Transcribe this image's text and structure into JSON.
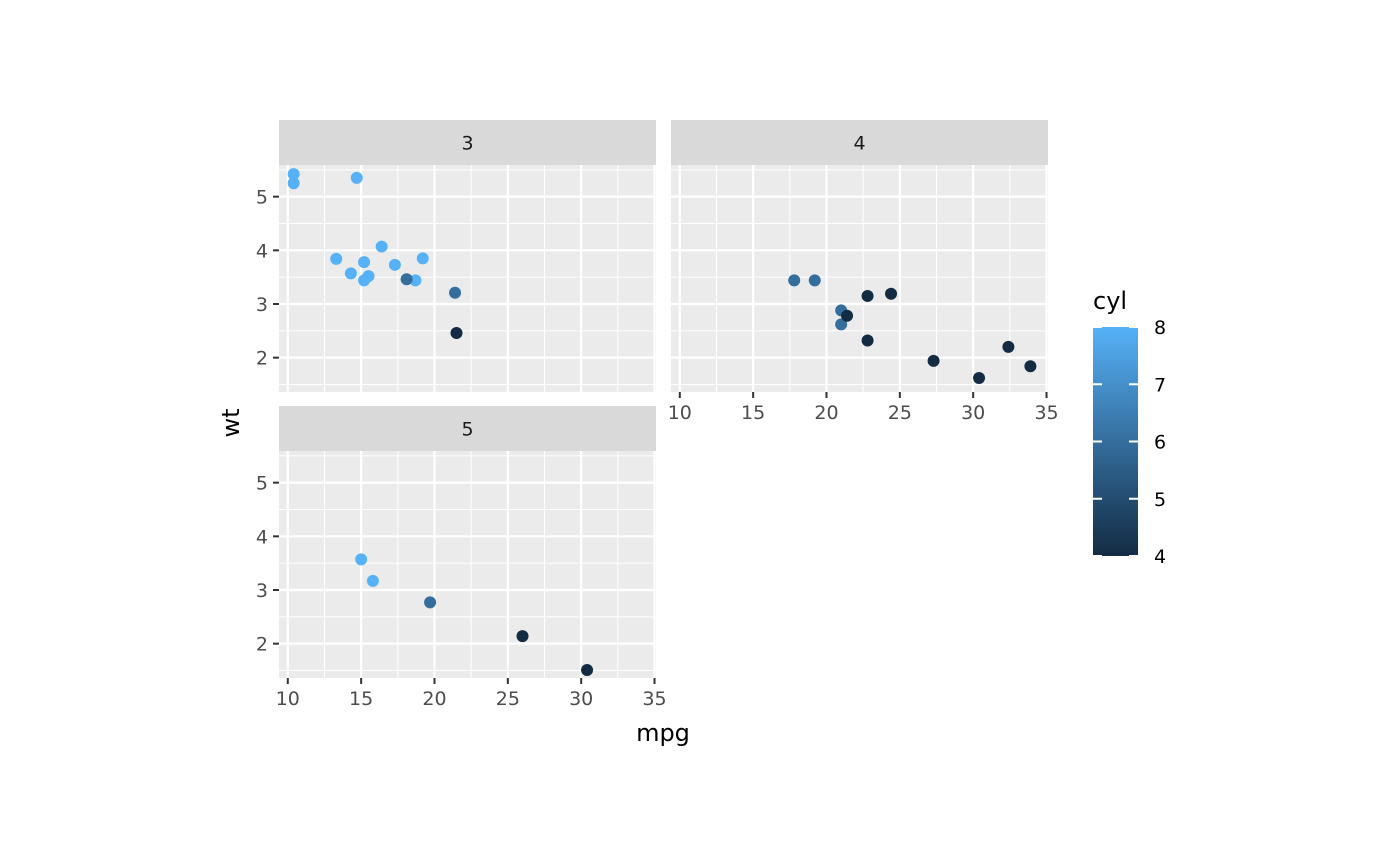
{
  "chart_data": {
    "type": "scatter",
    "xlabel": "mpg",
    "ylabel": "wt",
    "facet_variable": "gear",
    "xlim": [
      9.4,
      35.1
    ],
    "ylim": [
      1.36,
      5.59
    ],
    "x_ticks": [
      10,
      15,
      20,
      25,
      30,
      35
    ],
    "y_ticks": [
      2,
      3,
      4,
      5
    ],
    "grid": true,
    "legend": {
      "title": "cyl",
      "placement": "right",
      "type": "colorbar",
      "range": [
        4,
        8
      ],
      "ticks": [
        4,
        5,
        6,
        7,
        8
      ],
      "color_low": "#132B43",
      "color_high": "#56B1F7"
    },
    "panels": [
      {
        "label": "3",
        "points": [
          {
            "x": 10.4,
            "y": 5.42,
            "cyl": 8
          },
          {
            "x": 10.4,
            "y": 5.25,
            "cyl": 8
          },
          {
            "x": 14.7,
            "y": 5.35,
            "cyl": 8
          },
          {
            "x": 13.3,
            "y": 3.84,
            "cyl": 8
          },
          {
            "x": 14.3,
            "y": 3.57,
            "cyl": 8
          },
          {
            "x": 15.2,
            "y": 3.78,
            "cyl": 8
          },
          {
            "x": 15.2,
            "y": 3.44,
            "cyl": 8
          },
          {
            "x": 15.5,
            "y": 3.52,
            "cyl": 8
          },
          {
            "x": 16.4,
            "y": 4.07,
            "cyl": 8
          },
          {
            "x": 17.3,
            "y": 3.73,
            "cyl": 8
          },
          {
            "x": 18.7,
            "y": 3.44,
            "cyl": 8
          },
          {
            "x": 19.2,
            "y": 3.85,
            "cyl": 8
          },
          {
            "x": 18.1,
            "y": 3.46,
            "cyl": 6
          },
          {
            "x": 21.4,
            "y": 3.21,
            "cyl": 6
          },
          {
            "x": 21.5,
            "y": 2.46,
            "cyl": 4
          }
        ]
      },
      {
        "label": "4",
        "points": [
          {
            "x": 17.8,
            "y": 3.44,
            "cyl": 6
          },
          {
            "x": 19.2,
            "y": 3.44,
            "cyl": 6
          },
          {
            "x": 21.0,
            "y": 2.88,
            "cyl": 6
          },
          {
            "x": 21.0,
            "y": 2.62,
            "cyl": 6
          },
          {
            "x": 21.4,
            "y": 2.78,
            "cyl": 4
          },
          {
            "x": 22.8,
            "y": 3.15,
            "cyl": 4
          },
          {
            "x": 22.8,
            "y": 2.32,
            "cyl": 4
          },
          {
            "x": 24.4,
            "y": 3.19,
            "cyl": 4
          },
          {
            "x": 27.3,
            "y": 1.94,
            "cyl": 4
          },
          {
            "x": 30.4,
            "y": 1.62,
            "cyl": 4
          },
          {
            "x": 32.4,
            "y": 2.2,
            "cyl": 4
          },
          {
            "x": 33.9,
            "y": 1.84,
            "cyl": 4
          }
        ]
      },
      {
        "label": "5",
        "points": [
          {
            "x": 15.0,
            "y": 3.57,
            "cyl": 8
          },
          {
            "x": 15.8,
            "y": 3.17,
            "cyl": 8
          },
          {
            "x": 19.7,
            "y": 2.77,
            "cyl": 6
          },
          {
            "x": 26.0,
            "y": 2.14,
            "cyl": 4
          },
          {
            "x": 30.4,
            "y": 1.51,
            "cyl": 4
          }
        ]
      }
    ]
  }
}
